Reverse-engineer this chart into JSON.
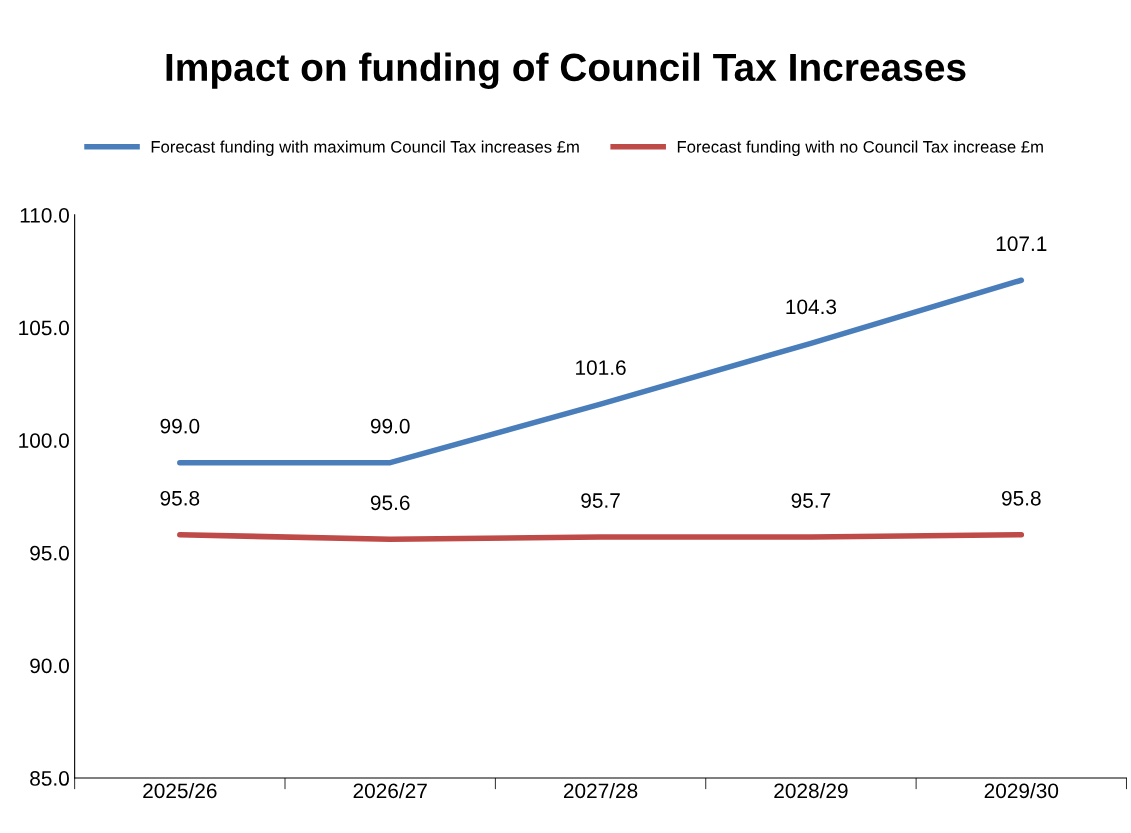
{
  "chart_data": {
    "type": "line",
    "title": "Impact on funding of Council Tax Increases",
    "categories": [
      "2025/26",
      "2026/27",
      "2027/28",
      "2028/29",
      "2029/30"
    ],
    "series": [
      {
        "name": "Forecast funding with maximum Council Tax increases £m",
        "color": "#4a7ebb",
        "values": [
          99.0,
          99.0,
          101.6,
          104.3,
          107.1
        ],
        "value_labels": [
          "99.0",
          "99.0",
          "101.6",
          "104.3",
          "107.1"
        ]
      },
      {
        "name": "Forecast funding with no Council Tax increase £m",
        "color": "#be4b48",
        "values": [
          95.8,
          95.6,
          95.7,
          95.7,
          95.8
        ],
        "value_labels": [
          "95.8",
          "95.6",
          "95.7",
          "95.7",
          "95.8"
        ]
      }
    ],
    "ylim": [
      85,
      110
    ],
    "yticks": [
      {
        "value": 85,
        "label": "85.0"
      },
      {
        "value": 90,
        "label": "90.0"
      },
      {
        "value": 95,
        "label": "95.0"
      },
      {
        "value": 100,
        "label": "100.0"
      },
      {
        "value": 105,
        "label": "105.0"
      },
      {
        "value": 110,
        "label": "110.0"
      }
    ],
    "grid": false,
    "legend": "top",
    "marker": "none",
    "line_style": "solid"
  }
}
